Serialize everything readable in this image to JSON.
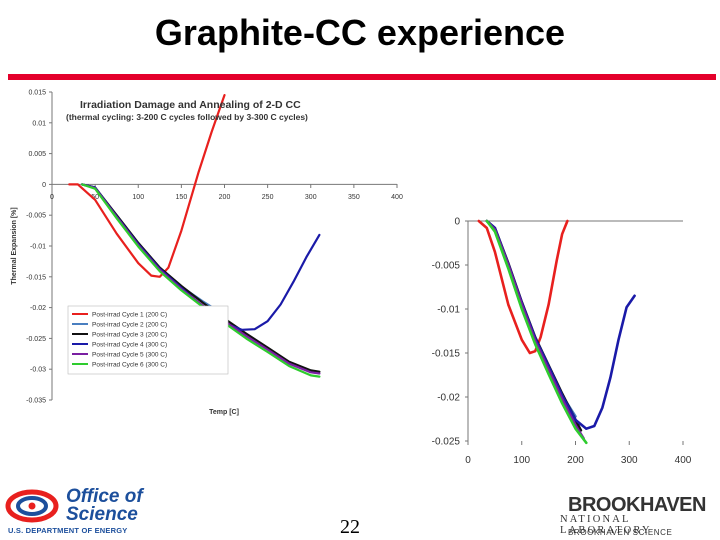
{
  "slide": {
    "title": "Graphite-CC experience",
    "page_number": "22"
  },
  "logos": {
    "doe_line1": "Office of",
    "doe_line2": "Science",
    "doe_line3": "U.S. DEPARTMENT OF ENERGY",
    "bnl_name": "BROOKHAVEN",
    "bnl_sub": "NATIONAL LABORATORY",
    "bnl_assoc": "BROOKHAVEN SCIENCE"
  },
  "colors": {
    "title_rule": "#e4002b",
    "cycle1": "#e8201e",
    "cycle2": "#4a7fc0",
    "cycle3": "#111111",
    "cycle4": "#1a1aa8",
    "cycle5": "#7a1fa2",
    "cycle6": "#2ecc2e"
  },
  "chart_data": [
    {
      "type": "line",
      "title": "Irradiation Damage and Annealing of 2-D CC",
      "subtitle": "(thermal cycling: 3-200 C cycles followed by 3-300 C cycles)",
      "xlabel": "Temp [C]",
      "ylabel": "Thermal Expansion [%]",
      "xlim": [
        0,
        400
      ],
      "ylim": [
        -0.035,
        0.015
      ],
      "x_ticks": [
        "0",
        "50",
        "100",
        "150",
        "200",
        "250",
        "300",
        "350",
        "400"
      ],
      "y_ticks": [
        "0.015",
        "0.01",
        "0.005",
        "0",
        "-0.005",
        "-0.01",
        "-0.015",
        "-0.02",
        "-0.025",
        "-0.03",
        "-0.035"
      ],
      "legend_position": "bottom-left",
      "grid": false,
      "series": [
        {
          "name": "Post-irrad Cycle 1 (200 C)",
          "color": "#e8201e",
          "x": [
            20,
            30,
            50,
            75,
            100,
            115,
            125,
            135,
            150,
            170,
            185,
            200
          ],
          "y": [
            0,
            0,
            -0.0025,
            -0.008,
            -0.0128,
            -0.0148,
            -0.015,
            -0.0135,
            -0.0075,
            0.002,
            0.0085,
            0.0145
          ]
        },
        {
          "name": "Post-irrad Cycle 2 (200 C)",
          "color": "#4a7fc0",
          "x": [
            35,
            50,
            75,
            100,
            125,
            150,
            175,
            200
          ],
          "y": [
            0,
            -0.0005,
            -0.0052,
            -0.0098,
            -0.0138,
            -0.0166,
            -0.019,
            -0.0212
          ]
        },
        {
          "name": "Post-irrad Cycle 3 (200 C)",
          "color": "#111111",
          "x": [
            35,
            50,
            75,
            100,
            125,
            150,
            175,
            200,
            225,
            250,
            275,
            300,
            310
          ],
          "y": [
            0,
            -0.0005,
            -0.005,
            -0.0095,
            -0.0135,
            -0.0165,
            -0.0192,
            -0.0218,
            -0.0242,
            -0.0265,
            -0.0288,
            -0.0302,
            -0.0304
          ]
        },
        {
          "name": "Post-irrad  Cycle 4 (300 C)",
          "color": "#1a1aa8",
          "x": [
            35,
            50,
            75,
            100,
            125,
            150,
            175,
            200,
            220,
            235,
            250,
            265,
            280,
            295,
            310
          ],
          "y": [
            0,
            -0.0005,
            -0.0052,
            -0.0097,
            -0.0137,
            -0.0168,
            -0.0198,
            -0.0225,
            -0.0236,
            -0.0235,
            -0.0222,
            -0.0195,
            -0.0158,
            -0.0118,
            -0.0082
          ]
        },
        {
          "name": "Post-irrad  Cycle 5 (300 C)",
          "color": "#7a1fa2",
          "x": [
            35,
            50,
            75,
            100,
            125,
            150,
            175,
            200,
            225,
            250,
            275,
            300,
            310
          ],
          "y": [
            0,
            -0.0006,
            -0.0053,
            -0.0099,
            -0.0139,
            -0.017,
            -0.0197,
            -0.0222,
            -0.0246,
            -0.0268,
            -0.0291,
            -0.0305,
            -0.0307
          ]
        },
        {
          "name": "Post-irrad Cycle 6 (300 C)",
          "color": "#2ecc2e",
          "x": [
            35,
            50,
            75,
            100,
            125,
            150,
            175,
            200,
            225,
            250,
            275,
            300,
            310
          ],
          "y": [
            0,
            -0.0007,
            -0.0055,
            -0.0101,
            -0.0141,
            -0.0172,
            -0.0199,
            -0.0225,
            -0.025,
            -0.0272,
            -0.0295,
            -0.031,
            -0.0312
          ]
        }
      ]
    },
    {
      "type": "line",
      "title": "",
      "xlim": [
        0,
        400
      ],
      "ylim": [
        -0.025,
        0
      ],
      "x_ticks": [
        "0",
        "100",
        "200",
        "300",
        "400"
      ],
      "y_ticks": [
        "0",
        "-0.005",
        "-0.01",
        "-0.015",
        "-0.02",
        "-0.025"
      ],
      "grid": false,
      "series": [
        {
          "color": "#e8201e",
          "x": [
            20,
            35,
            50,
            75,
            100,
            115,
            125,
            135,
            150,
            165,
            175,
            185
          ],
          "y": [
            0,
            -0.0008,
            -0.0035,
            -0.0095,
            -0.0135,
            -0.015,
            -0.0148,
            -0.0132,
            -0.0095,
            -0.0045,
            -0.0015,
            0
          ]
        },
        {
          "color": "#4a7fc0",
          "x": [
            35,
            50,
            75,
            100,
            125,
            150,
            175,
            200
          ],
          "y": [
            0,
            -0.0009,
            -0.005,
            -0.0095,
            -0.0135,
            -0.0167,
            -0.0198,
            -0.0222
          ]
        },
        {
          "color": "#111111",
          "x": [
            35,
            50,
            75,
            100,
            125,
            150,
            175,
            200,
            210
          ],
          "y": [
            0,
            -0.0008,
            -0.0048,
            -0.0092,
            -0.0132,
            -0.0164,
            -0.0196,
            -0.0226,
            -0.0238
          ]
        },
        {
          "color": "#1a1aa8",
          "x": [
            35,
            50,
            75,
            100,
            125,
            150,
            175,
            200,
            220,
            235,
            250,
            265,
            280,
            295,
            310
          ],
          "y": [
            0,
            -0.0008,
            -0.0049,
            -0.0093,
            -0.0133,
            -0.0165,
            -0.0198,
            -0.0226,
            -0.0236,
            -0.0233,
            -0.0212,
            -0.0178,
            -0.0135,
            -0.0098,
            -0.0085
          ]
        },
        {
          "color": "#7a1fa2",
          "x": [
            35,
            50,
            75,
            100,
            125,
            150,
            175,
            200,
            215
          ],
          "y": [
            0,
            -0.001,
            -0.005,
            -0.0095,
            -0.0136,
            -0.0169,
            -0.0202,
            -0.0232,
            -0.0247
          ]
        },
        {
          "color": "#2ecc2e",
          "x": [
            35,
            50,
            75,
            100,
            125,
            150,
            175,
            200,
            220
          ],
          "y": [
            0,
            -0.0012,
            -0.0054,
            -0.01,
            -0.014,
            -0.0174,
            -0.0207,
            -0.0236,
            -0.0252
          ]
        }
      ]
    }
  ]
}
